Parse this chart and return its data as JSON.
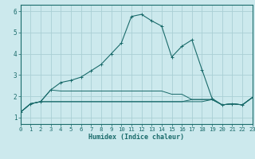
{
  "xlabel": "Humidex (Indice chaleur)",
  "ylabel": "",
  "bg_color": "#cce9ed",
  "grid_color": "#aacfd4",
  "line_color": "#1a6b6b",
  "xlim": [
    0,
    23
  ],
  "ylim": [
    0.7,
    6.3
  ],
  "xticks": [
    0,
    1,
    2,
    3,
    4,
    5,
    6,
    7,
    8,
    9,
    10,
    11,
    12,
    13,
    14,
    15,
    16,
    17,
    18,
    19,
    20,
    21,
    22,
    23
  ],
  "yticks": [
    1,
    2,
    3,
    4,
    5,
    6
  ],
  "line1_x": [
    0,
    1,
    2,
    3,
    4,
    5,
    6,
    7,
    8,
    9,
    10,
    11,
    12,
    13,
    14,
    15,
    16,
    17,
    18,
    19,
    20,
    21,
    22,
    23
  ],
  "line1_y": [
    1.25,
    1.65,
    1.75,
    2.3,
    2.65,
    2.75,
    2.9,
    3.2,
    3.5,
    4.0,
    4.5,
    5.75,
    5.85,
    5.55,
    5.3,
    3.85,
    4.35,
    4.65,
    3.25,
    1.9,
    1.6,
    1.65,
    1.6,
    1.95
  ],
  "line2_x": [
    0,
    1,
    2,
    3,
    4,
    5,
    6,
    7,
    8,
    9,
    10,
    11,
    12,
    13,
    14,
    15,
    16,
    17,
    18,
    19,
    20,
    21,
    22,
    23
  ],
  "line2_y": [
    1.25,
    1.65,
    1.75,
    2.3,
    2.25,
    2.25,
    2.25,
    2.25,
    2.25,
    2.25,
    2.25,
    2.25,
    2.25,
    2.25,
    2.25,
    2.1,
    2.1,
    1.85,
    1.85,
    1.85,
    1.6,
    1.65,
    1.6,
    1.95
  ],
  "line3_x": [
    0,
    1,
    2,
    3,
    4,
    5,
    6,
    7,
    8,
    9,
    10,
    11,
    12,
    13,
    14,
    15,
    16,
    17,
    18,
    19,
    20,
    21,
    22,
    23
  ],
  "line3_y": [
    1.25,
    1.65,
    1.75,
    1.75,
    1.75,
    1.75,
    1.75,
    1.75,
    1.75,
    1.75,
    1.75,
    1.75,
    1.75,
    1.75,
    1.75,
    1.75,
    1.75,
    1.75,
    1.75,
    1.85,
    1.6,
    1.65,
    1.6,
    1.95
  ],
  "line4_x": [
    0,
    1,
    2,
    3,
    4,
    5,
    6,
    7,
    8,
    9,
    10,
    11,
    12,
    13,
    14,
    15,
    16,
    17,
    18,
    19,
    20,
    21,
    22,
    23
  ],
  "line4_y": [
    1.25,
    1.65,
    1.75,
    1.75,
    1.75,
    1.75,
    1.75,
    1.75,
    1.75,
    1.75,
    1.75,
    1.75,
    1.75,
    1.75,
    1.75,
    1.75,
    1.75,
    1.85,
    1.85,
    1.85,
    1.6,
    1.65,
    1.6,
    1.95
  ]
}
